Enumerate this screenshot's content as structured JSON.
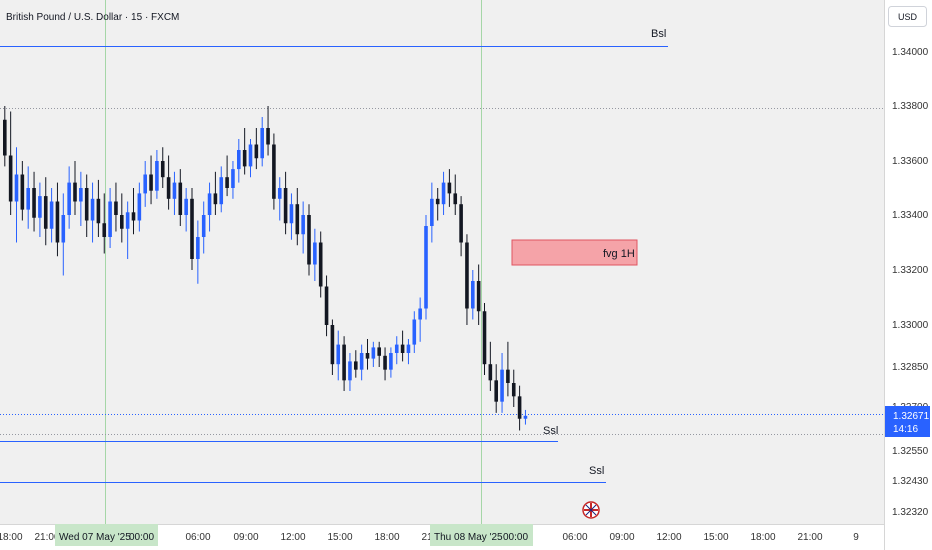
{
  "header": {
    "title": "British Pound / U.S. Dollar · 15 · FXCM",
    "currency": "USD"
  },
  "colors": {
    "up": "#2962ff",
    "down": "#131722",
    "level_line": "#2962ff",
    "fvg_fill": "#f5a3a8",
    "fvg_border": "#e05561",
    "price_tag": "#2962ff",
    "session_line": "#a5d6a7",
    "date_tag": "#c8e6c9"
  },
  "chart_data": {
    "type": "candlestick",
    "y_ticks": [
      "1.34000",
      "1.33800",
      "1.33600",
      "1.33400",
      "1.33200",
      "1.33000",
      "1.32850",
      "1.32700",
      "1.32550",
      "1.32430",
      "1.32320"
    ],
    "x_ticks": [
      "18:00",
      "21:00",
      "06:00",
      "09:00",
      "12:00",
      "15:00",
      "18:00",
      "21:00",
      "06:00",
      "09:00",
      "12:00",
      "15:00",
      "18:00",
      "21:00",
      "9"
    ],
    "date_labels": [
      "Wed 07 May '25",
      "00:00",
      "Thu 08 May '25",
      "00:00"
    ],
    "current_price": "1.32671",
    "countdown": "14:16",
    "ohlc": [
      [
        1.3375,
        1.338,
        1.3358,
        1.3362
      ],
      [
        1.3362,
        1.3378,
        1.334,
        1.3345
      ],
      [
        1.3345,
        1.3365,
        1.333,
        1.3355
      ],
      [
        1.3355,
        1.336,
        1.3338,
        1.3342
      ],
      [
        1.3342,
        1.3358,
        1.3335,
        1.335
      ],
      [
        1.335,
        1.3356,
        1.3334,
        1.3339
      ],
      [
        1.3339,
        1.3352,
        1.3332,
        1.3347
      ],
      [
        1.3347,
        1.3354,
        1.3329,
        1.3335
      ],
      [
        1.3335,
        1.335,
        1.333,
        1.3345
      ],
      [
        1.3345,
        1.3352,
        1.3325,
        1.333
      ],
      [
        1.333,
        1.3348,
        1.3318,
        1.334
      ],
      [
        1.334,
        1.3358,
        1.3335,
        1.3352
      ],
      [
        1.3352,
        1.336,
        1.334,
        1.3345
      ],
      [
        1.3345,
        1.3356,
        1.3336,
        1.335
      ],
      [
        1.335,
        1.3355,
        1.3332,
        1.3338
      ],
      [
        1.3338,
        1.3352,
        1.333,
        1.3346
      ],
      [
        1.3346,
        1.3353,
        1.3332,
        1.3337
      ],
      [
        1.3337,
        1.3348,
        1.3326,
        1.3332
      ],
      [
        1.3332,
        1.335,
        1.3328,
        1.3345
      ],
      [
        1.3345,
        1.3352,
        1.3334,
        1.334
      ],
      [
        1.334,
        1.3348,
        1.333,
        1.3335
      ],
      [
        1.3335,
        1.3345,
        1.3324,
        1.3341
      ],
      [
        1.3341,
        1.335,
        1.3333,
        1.3338
      ],
      [
        1.3338,
        1.3352,
        1.3334,
        1.3348
      ],
      [
        1.3348,
        1.336,
        1.3343,
        1.3355
      ],
      [
        1.3355,
        1.3362,
        1.3344,
        1.3349
      ],
      [
        1.3349,
        1.3364,
        1.3346,
        1.336
      ],
      [
        1.336,
        1.3365,
        1.335,
        1.3354
      ],
      [
        1.3354,
        1.3362,
        1.3342,
        1.3346
      ],
      [
        1.3346,
        1.3356,
        1.334,
        1.3352
      ],
      [
        1.3352,
        1.3357,
        1.3336,
        1.334
      ],
      [
        1.334,
        1.335,
        1.3334,
        1.3346
      ],
      [
        1.3346,
        1.335,
        1.332,
        1.3324
      ],
      [
        1.3324,
        1.3338,
        1.3315,
        1.3332
      ],
      [
        1.3332,
        1.3345,
        1.3326,
        1.334
      ],
      [
        1.334,
        1.3352,
        1.3334,
        1.3348
      ],
      [
        1.3348,
        1.3356,
        1.334,
        1.3344
      ],
      [
        1.3344,
        1.3358,
        1.3341,
        1.3354
      ],
      [
        1.3354,
        1.3362,
        1.3347,
        1.335
      ],
      [
        1.335,
        1.336,
        1.3346,
        1.3357
      ],
      [
        1.3357,
        1.3368,
        1.3352,
        1.3364
      ],
      [
        1.3364,
        1.3372,
        1.3355,
        1.3358
      ],
      [
        1.3358,
        1.3368,
        1.3354,
        1.3366
      ],
      [
        1.3366,
        1.3372,
        1.3357,
        1.3361
      ],
      [
        1.3361,
        1.3376,
        1.3358,
        1.3372
      ],
      [
        1.3372,
        1.338,
        1.3362,
        1.3366
      ],
      [
        1.3366,
        1.337,
        1.3342,
        1.3346
      ],
      [
        1.3346,
        1.3354,
        1.3338,
        1.335
      ],
      [
        1.335,
        1.3356,
        1.3333,
        1.3337
      ],
      [
        1.3337,
        1.3348,
        1.3331,
        1.3344
      ],
      [
        1.3344,
        1.335,
        1.3329,
        1.3333
      ],
      [
        1.3333,
        1.3345,
        1.3326,
        1.334
      ],
      [
        1.334,
        1.3344,
        1.3318,
        1.3322
      ],
      [
        1.3322,
        1.3335,
        1.3316,
        1.333
      ],
      [
        1.333,
        1.3334,
        1.331,
        1.3314
      ],
      [
        1.3314,
        1.3318,
        1.3296,
        1.33
      ],
      [
        1.33,
        1.3302,
        1.3282,
        1.3286
      ],
      [
        1.3286,
        1.3298,
        1.328,
        1.3293
      ],
      [
        1.3293,
        1.3296,
        1.3276,
        1.328
      ],
      [
        1.328,
        1.329,
        1.3276,
        1.3287
      ],
      [
        1.3287,
        1.3291,
        1.3281,
        1.3284
      ],
      [
        1.3284,
        1.3293,
        1.328,
        1.329
      ],
      [
        1.329,
        1.3295,
        1.3284,
        1.3288
      ],
      [
        1.3288,
        1.3294,
        1.3285,
        1.3292
      ],
      [
        1.3292,
        1.3294,
        1.3285,
        1.3289
      ],
      [
        1.3289,
        1.3292,
        1.328,
        1.3284
      ],
      [
        1.3284,
        1.3292,
        1.3281,
        1.329
      ],
      [
        1.329,
        1.3296,
        1.3286,
        1.3293
      ],
      [
        1.3293,
        1.3298,
        1.3287,
        1.329
      ],
      [
        1.329,
        1.3295,
        1.3286,
        1.3293
      ],
      [
        1.3293,
        1.3305,
        1.329,
        1.3302
      ],
      [
        1.3302,
        1.331,
        1.3294,
        1.3306
      ],
      [
        1.3306,
        1.334,
        1.3302,
        1.3336
      ],
      [
        1.3336,
        1.3352,
        1.333,
        1.3346
      ],
      [
        1.3346,
        1.335,
        1.3338,
        1.3344
      ],
      [
        1.3344,
        1.3356,
        1.334,
        1.3352
      ],
      [
        1.3352,
        1.3357,
        1.3343,
        1.3348
      ],
      [
        1.3348,
        1.3355,
        1.334,
        1.3344
      ],
      [
        1.3344,
        1.3347,
        1.3325,
        1.333
      ],
      [
        1.333,
        1.3333,
        1.33,
        1.3306
      ],
      [
        1.3306,
        1.332,
        1.3302,
        1.3316
      ],
      [
        1.3316,
        1.3322,
        1.33,
        1.3305
      ],
      [
        1.3305,
        1.3308,
        1.3282,
        1.3286
      ],
      [
        1.3286,
        1.3294,
        1.3276,
        1.328
      ],
      [
        1.328,
        1.3286,
        1.3268,
        1.3272
      ],
      [
        1.3272,
        1.329,
        1.3268,
        1.3284
      ],
      [
        1.3284,
        1.3294,
        1.3274,
        1.3279
      ],
      [
        1.3279,
        1.3284,
        1.327,
        1.3274
      ],
      [
        1.3274,
        1.3278,
        1.3262,
        1.3266
      ],
      [
        1.3266,
        1.3269,
        1.3264,
        1.3267
      ]
    ],
    "annotations": [
      {
        "label": "Bsl",
        "price": 1.3405
      },
      {
        "label": "fvg 1H",
        "top": 1.3331,
        "bottom": 1.3322
      },
      {
        "label": "Ssl",
        "price": 1.3259
      },
      {
        "label": "Ssl",
        "price": 1.3243
      }
    ]
  }
}
